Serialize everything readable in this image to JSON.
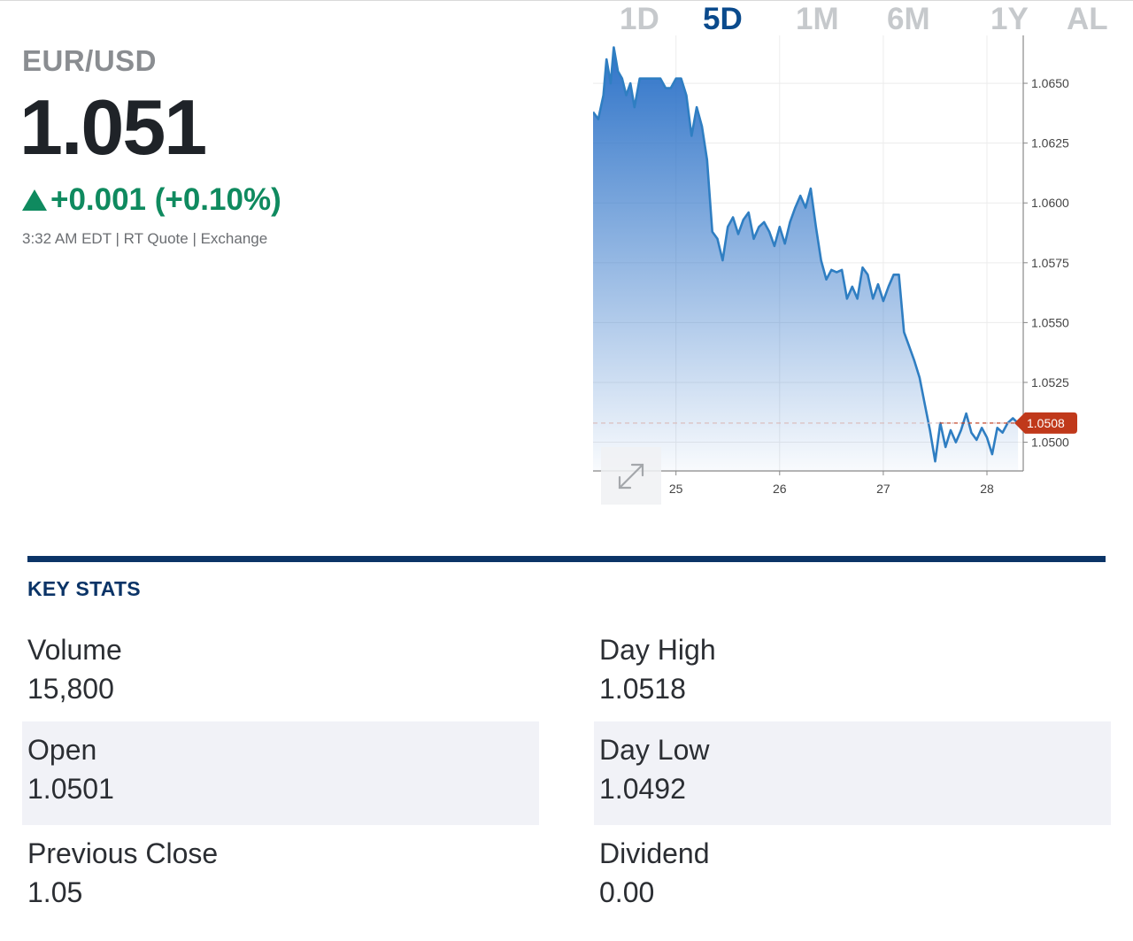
{
  "quote": {
    "symbol": "EUR/USD",
    "price": "1.051",
    "change": "+0.001 (+0.10%)",
    "meta": "3:32 AM EDT | RT Quote | Exchange",
    "up_color": "#0f8a5f"
  },
  "range_tabs": [
    {
      "label": "1D",
      "active": false
    },
    {
      "label": "5D",
      "active": true
    },
    {
      "label": "1M",
      "active": false
    },
    {
      "label": "6M",
      "active": false
    },
    {
      "label": "1Y",
      "active": false
    },
    {
      "label": "AL",
      "active": false
    }
  ],
  "chart_data": {
    "type": "area",
    "x_ticks": [
      25,
      26,
      27,
      28
    ],
    "y_ticks": [
      "1.0650",
      "1.0625",
      "1.0600",
      "1.0575",
      "1.0550",
      "1.0525",
      "1.0500"
    ],
    "ylim": [
      1.0488,
      1.067
    ],
    "xlim": [
      24.2,
      28.35
    ],
    "last_price_label": "1.0508",
    "last_price": 1.0508,
    "line_color": "#2f7ec2",
    "fill_top": "#2e73c8",
    "marker_color": "#c0391b",
    "grid": true,
    "series": [
      {
        "x": [
          24.2,
          24.25,
          24.3,
          24.33,
          24.37,
          24.4,
          24.44,
          24.48,
          24.52,
          24.56,
          24.6,
          24.65,
          24.7,
          24.75,
          24.8,
          24.85,
          24.9,
          24.95,
          25.0,
          25.05,
          25.1,
          25.15,
          25.2,
          25.25,
          25.3,
          25.35,
          25.4,
          25.45,
          25.5,
          25.55,
          25.6,
          25.65,
          25.7,
          25.75,
          25.8,
          25.85,
          25.9,
          25.95,
          26.0,
          26.05,
          26.1,
          26.15,
          26.2,
          26.25,
          26.3,
          26.35,
          26.4,
          26.45,
          26.5,
          26.55,
          26.6,
          26.65,
          26.7,
          26.75,
          26.8,
          26.85,
          26.9,
          26.95,
          27.0,
          27.05,
          27.1,
          27.15,
          27.2,
          27.25,
          27.3,
          27.35,
          27.4,
          27.45,
          27.5,
          27.55,
          27.6,
          27.65,
          27.7,
          27.75,
          27.8,
          27.85,
          27.9,
          27.95,
          28.0,
          28.05,
          28.1,
          28.15,
          28.2,
          28.25,
          28.3
        ],
        "y": [
          1.0638,
          1.0635,
          1.0645,
          1.066,
          1.065,
          1.0665,
          1.0655,
          1.0652,
          1.0645,
          1.065,
          1.064,
          1.0652,
          1.0652,
          1.0652,
          1.0652,
          1.0652,
          1.0648,
          1.0648,
          1.0652,
          1.0652,
          1.0645,
          1.0628,
          1.064,
          1.0632,
          1.0618,
          1.0588,
          1.0585,
          1.0576,
          1.059,
          1.0594,
          1.0587,
          1.0593,
          1.0596,
          1.0585,
          1.059,
          1.0592,
          1.0588,
          1.0582,
          1.059,
          1.0583,
          1.0592,
          1.0598,
          1.0603,
          1.0598,
          1.0606,
          1.059,
          1.0576,
          1.0568,
          1.0572,
          1.0571,
          1.0572,
          1.056,
          1.0565,
          1.056,
          1.0573,
          1.057,
          1.056,
          1.0566,
          1.0559,
          1.0565,
          1.057,
          1.057,
          1.0546,
          1.054,
          1.0534,
          1.0527,
          1.0516,
          1.0505,
          1.0492,
          1.0508,
          1.0498,
          1.0505,
          1.05,
          1.0505,
          1.0512,
          1.0504,
          1.0501,
          1.0506,
          1.0502,
          1.0495,
          1.0506,
          1.0504,
          1.0508,
          1.051,
          1.0508
        ]
      }
    ]
  },
  "key_stats": {
    "title": "KEY STATS",
    "items": [
      {
        "label": "Volume",
        "value": "15,800"
      },
      {
        "label": "Day High",
        "value": "1.0518"
      },
      {
        "label": "Open",
        "value": "1.0501"
      },
      {
        "label": "Day Low",
        "value": "1.0492"
      },
      {
        "label": "Previous Close",
        "value": "1.05"
      },
      {
        "label": "Dividend",
        "value": "0.00"
      }
    ]
  },
  "icons": {
    "expand": "expand-arrows-icon",
    "up": "up-triangle-icon"
  }
}
